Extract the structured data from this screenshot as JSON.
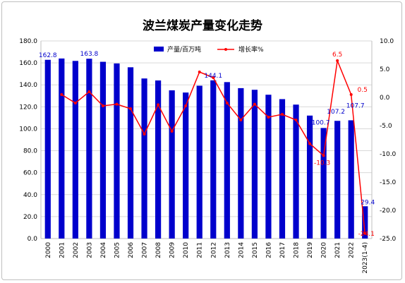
{
  "chart_data": {
    "type": "bar",
    "title": "波兰煤炭产量变化走势",
    "categories": [
      "2000",
      "2001",
      "2002",
      "2003",
      "2004",
      "2005",
      "2006",
      "2007",
      "2008",
      "2009",
      "2010",
      "2011",
      "2012",
      "2013",
      "2014",
      "2015",
      "2016",
      "2017",
      "2018",
      "2019",
      "2020",
      "2021",
      "2022",
      "2023(1-4)"
    ],
    "series": [
      {
        "name": "产量/百万吨",
        "kind": "bar",
        "axis": "left",
        "color": "#0000cc",
        "values": [
          162.8,
          164.0,
          161.8,
          163.8,
          161.0,
          159.5,
          156.0,
          145.8,
          144.0,
          135.0,
          133.0,
          139.2,
          144.1,
          142.5,
          137.0,
          135.5,
          131.0,
          127.0,
          122.0,
          112.0,
          100.7,
          107.2,
          107.7,
          29.4
        ]
      },
      {
        "name": "增长率%",
        "kind": "line",
        "axis": "right",
        "color": "#ff0000",
        "values": [
          null,
          0.5,
          -1.0,
          1.0,
          -1.5,
          -1.2,
          -2.0,
          -6.5,
          -1.3,
          -6.0,
          -1.5,
          4.5,
          3.5,
          -1.0,
          -4.0,
          -1.2,
          -3.5,
          -3.0,
          -4.0,
          -8.2,
          -10.3,
          6.5,
          0.5,
          -24.1
        ]
      }
    ],
    "ylim_left": [
      0,
      180
    ],
    "yticks_left": [
      "0.0",
      "20.0",
      "40.0",
      "60.0",
      "80.0",
      "100.0",
      "120.0",
      "140.0",
      "160.0",
      "180.0"
    ],
    "ylim_right": [
      -25,
      10
    ],
    "yticks_right": [
      "-25.0",
      "-20.0",
      "-15.0",
      "-10.0",
      "-5.0",
      "0.0",
      "5.0",
      "10.0"
    ],
    "bar_labels": [
      {
        "index": 0,
        "text": "162.8"
      },
      {
        "index": 3,
        "text": "163.8"
      },
      {
        "index": 12,
        "text": "144.1"
      },
      {
        "index": 20,
        "text": "100.7"
      },
      {
        "index": 21,
        "text": "107.2"
      },
      {
        "index": 22,
        "text": "107.7"
      },
      {
        "index": 23,
        "text": "29.4"
      }
    ],
    "line_labels": [
      {
        "index": 20,
        "text": "-10.3"
      },
      {
        "index": 21,
        "text": "6.5"
      },
      {
        "index": 22,
        "text": "0.5"
      },
      {
        "index": 23,
        "text": "-24.1"
      }
    ],
    "grid": true,
    "legend_position": "top-center"
  }
}
